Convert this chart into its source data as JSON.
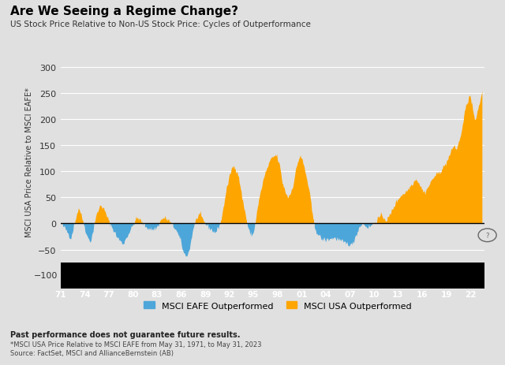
{
  "title": "Are We Seeing a Regime Change?",
  "subtitle": "US Stock Price Relative to Non-US Stock Price: Cycles of Outperformance",
  "ylabel": "MSCI USA Price Relative to MSCI EAFE*",
  "background_color": "#e0e0e0",
  "plot_bg_color": "#e0e0e0",
  "color_positive": "#FFA500",
  "color_negative": "#4da6d9",
  "xtick_labels": [
    "71",
    "74",
    "77",
    "80",
    "83",
    "86",
    "89",
    "92",
    "95",
    "98",
    "01",
    "04",
    "07",
    "10",
    "13",
    "16",
    "19",
    "22"
  ],
  "footnote1": "Past performance does not guarantee future results.",
  "footnote2": "*MSCI USA Price Relative to MSCI EAFE from May 31, 1971, to May 31, 2023",
  "footnote3": "Source: FactSet, MSCI and AllianceBernstein (AB)",
  "legend_blue": "MSCI EAFE Outperformed",
  "legend_orange": "MSCI USA Outperformed",
  "ylim": [
    -75,
    310
  ],
  "xlim_start": 1971,
  "xlim_end": 2023.8
}
